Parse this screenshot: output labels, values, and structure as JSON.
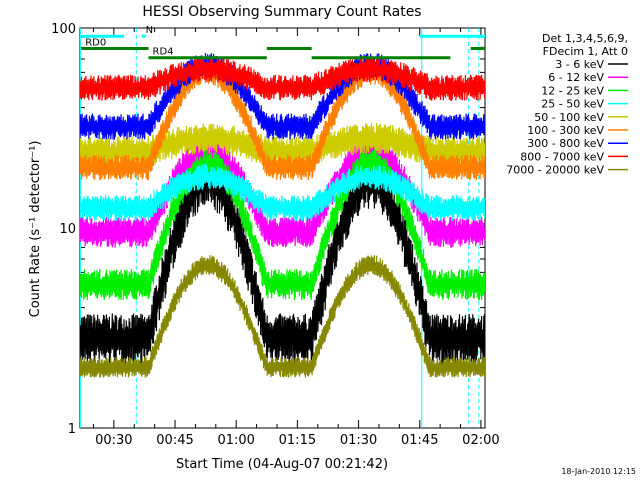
{
  "chart_data": {
    "type": "line",
    "title": "HESSI Observing Summary Count Rates",
    "xlabel": "Start Time (04-Aug-07 00:21:42)",
    "ylabel": "Count Rate (s⁻¹ detector⁻¹)",
    "x_unit": "minutes after 00:00",
    "xlim": [
      21.7,
      121.0
    ],
    "ylim": [
      1,
      100
    ],
    "yscale": "log",
    "x_tick_labels": [
      "00:30",
      "00:45",
      "01:00",
      "01:15",
      "01:30",
      "01:45",
      "02:00"
    ],
    "x_ticks": [
      30,
      45,
      60,
      75,
      90,
      105,
      120
    ],
    "y_tick_labels": [
      "1",
      "10",
      "100"
    ],
    "y_ticks": [
      1,
      10,
      100
    ],
    "legend_header": [
      "Det 1,3,4,5,6,9,",
      "FDecim 1, Att 0"
    ],
    "legend_position": "right",
    "footer_date": "18-Jan-2010 12:15",
    "series": [
      {
        "name": "3 - 6 keV",
        "color": "#000000",
        "lo": 2.8,
        "peak": 17,
        "band_a": 2.0,
        "band_b": 1.2
      },
      {
        "name": "6 - 12 keV",
        "color": "#ff00ff",
        "lo": 9.5,
        "peak": 24,
        "band_a": 1.2,
        "band_b": 0.8
      },
      {
        "name": "12 - 25 keV",
        "color": "#00ee00",
        "lo": 5.2,
        "peak": 21,
        "band_a": 1.2,
        "band_b": 0.8
      },
      {
        "name": "25 - 50 keV",
        "color": "#00ffff",
        "lo": 12.5,
        "peak": 18,
        "band_a": 1.0,
        "band_b": 0.8
      },
      {
        "name": "50 - 100 keV",
        "color": "#cccc00",
        "lo": 24,
        "peak": 28,
        "band_a": 1.2,
        "band_b": 0.8
      },
      {
        "name": "100 - 300 keV",
        "color": "#ff8000",
        "lo": 20,
        "peak": 60,
        "band_a": 1.0,
        "band_b": 0.8
      },
      {
        "name": "300 - 800 keV",
        "color": "#0000ff",
        "lo": 32,
        "peak": 65,
        "band_a": 1.0,
        "band_b": 0.8
      },
      {
        "name": "800 - 7000 keV",
        "color": "#ff0000",
        "lo": 50,
        "peak": 62,
        "band_a": 1.0,
        "band_b": 0.8
      },
      {
        "name": "7000 - 20000 keV",
        "color": "#888800",
        "lo": 2.0,
        "peak": 6.5,
        "band_a": 0.8,
        "band_b": 0.7
      }
    ],
    "humps": [
      {
        "start": 38.5,
        "peak": 53.0,
        "end": 67.5
      },
      {
        "start": 78.5,
        "peak": 93.0,
        "end": 107.5
      }
    ],
    "state_bars": [
      {
        "label": "",
        "color": "#00ffff",
        "y": 91,
        "x_start": 22,
        "x_end": 32.5
      },
      {
        "label": "N",
        "color": "#00ffff",
        "y": 91,
        "x_start": 36.8,
        "x_end": 37.8
      },
      {
        "label": "",
        "color": "#00ffff",
        "y": 91,
        "x_start": 105,
        "x_end": 121
      },
      {
        "label": "RD0",
        "color": "#008000",
        "y": 79,
        "x_start": 22,
        "x_end": 38.5
      },
      {
        "label": "",
        "color": "#008000",
        "y": 79,
        "x_start": 67.5,
        "x_end": 78.5
      },
      {
        "label": "",
        "color": "#008000",
        "y": 79,
        "x_start": 117.5,
        "x_end": 121
      },
      {
        "label": "RD4",
        "color": "#008000",
        "y": 71,
        "x_start": 38.5,
        "x_end": 67.5
      },
      {
        "label": "",
        "color": "#008000",
        "y": 71,
        "x_start": 78.5,
        "x_end": 112.5
      }
    ],
    "vertical_markers": [
      {
        "x": 21.8,
        "color": "#00ffff",
        "dashed": false
      },
      {
        "x": 35.5,
        "color": "#00ffff",
        "dashed": true
      },
      {
        "x": 105.5,
        "color": "#00ffff",
        "dashed": false
      },
      {
        "x": 117.0,
        "color": "#00ffff",
        "dashed": true
      },
      {
        "x": 119.5,
        "color": "#00ffff",
        "dashed": true
      }
    ]
  }
}
